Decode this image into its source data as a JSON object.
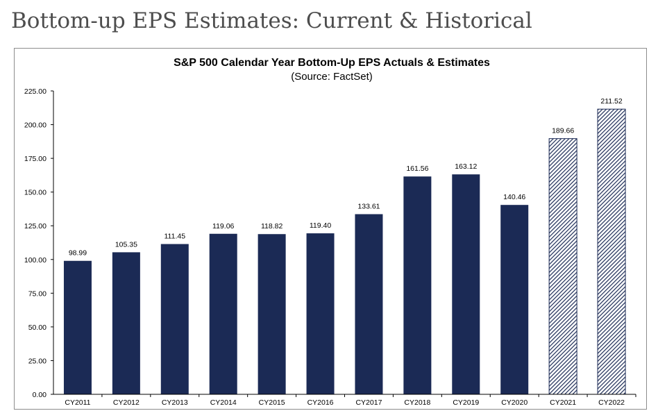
{
  "page": {
    "heading": "Bottom-up EPS Estimates: Current & Historical"
  },
  "colors": {
    "actual_bar": "#1b2a55",
    "estimate_bar": "#1b2a55",
    "axis": "#000000",
    "text": "#000000"
  },
  "chart_data": {
    "type": "bar",
    "title": "S&P 500 Calendar Year Bottom-Up EPS Actuals & Estimates",
    "subtitle": "(Source: FactSet)",
    "xlabel": "",
    "ylabel": "",
    "categories": [
      "CY2011",
      "CY2012",
      "CY2013",
      "CY2014",
      "CY2015",
      "CY2016",
      "CY2017",
      "CY2018",
      "CY2019",
      "CY2020",
      "CY2021",
      "CY2022"
    ],
    "values": [
      98.99,
      105.35,
      111.45,
      119.06,
      118.82,
      119.4,
      133.61,
      161.56,
      163.12,
      140.46,
      189.66,
      211.52
    ],
    "value_labels": [
      "98.99",
      "105.35",
      "111.45",
      "119.06",
      "118.82",
      "119.40",
      "133.61",
      "161.56",
      "163.12",
      "140.46",
      "189.66",
      "211.52"
    ],
    "estimate": [
      false,
      false,
      false,
      false,
      false,
      false,
      false,
      false,
      false,
      false,
      true,
      true
    ],
    "ylim": [
      0,
      225
    ],
    "yticks": [
      0,
      25,
      50,
      75,
      100,
      125,
      150,
      175,
      200,
      225
    ],
    "ytick_labels": [
      "0.00",
      "25.00",
      "50.00",
      "75.00",
      "100.00",
      "125.00",
      "150.00",
      "175.00",
      "200.00",
      "225.00"
    ],
    "grid": false,
    "legend": "none"
  }
}
